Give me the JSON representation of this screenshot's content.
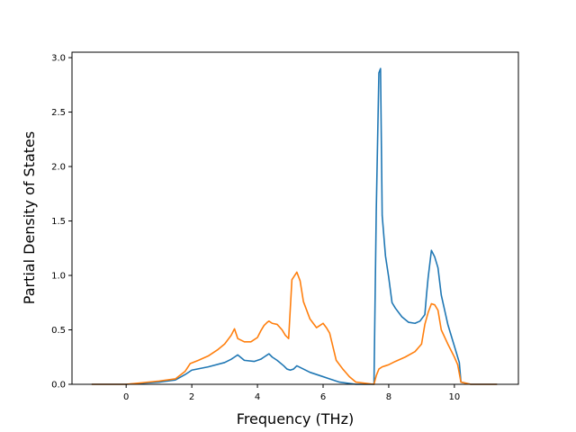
{
  "chart_data": {
    "type": "line",
    "title": "",
    "xlabel": "Frequency (THz)",
    "ylabel": "Partial Density of States",
    "xlim": [
      -1.65,
      11.95
    ],
    "ylim": [
      0,
      3.05
    ],
    "xticks": [
      0,
      2,
      4,
      6,
      8,
      10
    ],
    "xtick_labels": [
      "0",
      "2",
      "4",
      "6",
      "8",
      "10"
    ],
    "yticks": [
      0.0,
      0.5,
      1.0,
      1.5,
      2.0,
      2.5,
      3.0
    ],
    "ytick_labels": [
      "0.0",
      "0.5",
      "1.0",
      "1.5",
      "2.0",
      "2.5",
      "3.0"
    ],
    "grid": false,
    "legend": "none",
    "series": [
      {
        "color": "#1f77b4",
        "x": [
          -1.05,
          0.0,
          1.0,
          1.5,
          1.8,
          2.0,
          2.5,
          3.0,
          3.2,
          3.3,
          3.4,
          3.6,
          3.9,
          4.1,
          4.2,
          4.3,
          4.35,
          4.45,
          4.6,
          4.8,
          4.9,
          5.0,
          5.1,
          5.2,
          5.4,
          5.6,
          5.9,
          6.2,
          6.5,
          7.0,
          7.55,
          7.62,
          7.7,
          7.75,
          7.8,
          7.9,
          8.0,
          8.1,
          8.2,
          8.4,
          8.6,
          8.8,
          8.95,
          9.1,
          9.15,
          9.2,
          9.3,
          9.4,
          9.5,
          9.6,
          9.8,
          10.0,
          10.15,
          10.2,
          10.5,
          11.3
        ],
        "y": [
          0.0,
          0.0,
          0.02,
          0.04,
          0.09,
          0.13,
          0.16,
          0.2,
          0.23,
          0.25,
          0.27,
          0.22,
          0.21,
          0.23,
          0.25,
          0.27,
          0.28,
          0.25,
          0.22,
          0.17,
          0.14,
          0.13,
          0.14,
          0.17,
          0.14,
          0.11,
          0.08,
          0.05,
          0.02,
          0.0,
          0.0,
          1.6,
          2.86,
          2.9,
          1.55,
          1.18,
          0.98,
          0.75,
          0.7,
          0.62,
          0.57,
          0.56,
          0.58,
          0.64,
          0.82,
          0.98,
          1.23,
          1.17,
          1.07,
          0.82,
          0.55,
          0.35,
          0.2,
          0.02,
          0.0,
          0.0
        ]
      },
      {
        "color": "#ff7f0e",
        "x": [
          -1.05,
          0.0,
          1.0,
          1.5,
          1.8,
          1.95,
          2.2,
          2.5,
          2.8,
          3.0,
          3.2,
          3.3,
          3.4,
          3.6,
          3.8,
          4.0,
          4.1,
          4.2,
          4.3,
          4.35,
          4.45,
          4.6,
          4.75,
          4.85,
          4.95,
          5.05,
          5.2,
          5.3,
          5.4,
          5.6,
          5.8,
          5.9,
          6.0,
          6.1,
          6.2,
          6.4,
          6.6,
          6.8,
          7.0,
          7.55,
          7.62,
          7.7,
          7.8,
          7.9,
          8.0,
          8.2,
          8.5,
          8.8,
          9.0,
          9.1,
          9.2,
          9.3,
          9.4,
          9.5,
          9.6,
          9.8,
          10.0,
          10.1,
          10.2,
          10.5,
          11.3
        ],
        "y": [
          0.0,
          0.0,
          0.03,
          0.05,
          0.12,
          0.19,
          0.22,
          0.26,
          0.32,
          0.37,
          0.45,
          0.51,
          0.42,
          0.39,
          0.39,
          0.43,
          0.49,
          0.54,
          0.57,
          0.58,
          0.56,
          0.55,
          0.5,
          0.45,
          0.42,
          0.96,
          1.03,
          0.95,
          0.76,
          0.6,
          0.52,
          0.54,
          0.56,
          0.52,
          0.47,
          0.22,
          0.14,
          0.07,
          0.02,
          0.0,
          0.08,
          0.14,
          0.16,
          0.17,
          0.18,
          0.21,
          0.25,
          0.3,
          0.37,
          0.55,
          0.66,
          0.74,
          0.73,
          0.68,
          0.5,
          0.37,
          0.25,
          0.18,
          0.02,
          0.0,
          0.0
        ]
      }
    ]
  }
}
